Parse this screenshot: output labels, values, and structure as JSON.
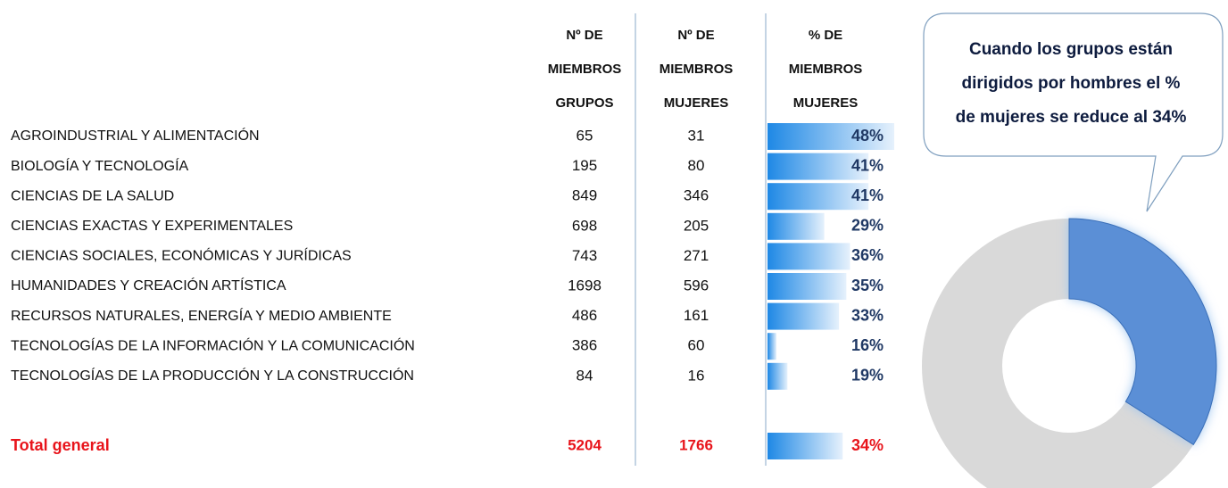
{
  "table": {
    "headers": [
      [
        "Nº DE",
        "MIEMBROS",
        "GRUPOS"
      ],
      [
        "Nº DE",
        "MIEMBROS",
        "MUJERES"
      ],
      [
        "% DE",
        "MIEMBROS",
        "MUJERES"
      ]
    ],
    "rows": [
      {
        "name": "AGROINDUSTRIAL Y ALIMENTACIÓN",
        "members": 65,
        "women": 31,
        "pct": 48,
        "pct_label": "48%"
      },
      {
        "name": "BIOLOGÍA Y TECNOLOGÍA",
        "members": 195,
        "women": 80,
        "pct": 41,
        "pct_label": "41%"
      },
      {
        "name": "CIENCIAS DE LA SALUD",
        "members": 849,
        "women": 346,
        "pct": 41,
        "pct_label": "41%"
      },
      {
        "name": "CIENCIAS EXACTAS Y EXPERIMENTALES",
        "members": 698,
        "women": 205,
        "pct": 29,
        "pct_label": "29%"
      },
      {
        "name": "CIENCIAS SOCIALES, ECONÓMICAS Y JURÍDICAS",
        "members": 743,
        "women": 271,
        "pct": 36,
        "pct_label": "36%"
      },
      {
        "name": "HUMANIDADES Y CREACIÓN ARTÍSTICA",
        "members": 1698,
        "women": 596,
        "pct": 35,
        "pct_label": "35%"
      },
      {
        "name": "RECURSOS NATURALES, ENERGÍA Y MEDIO AMBIENTE",
        "members": 486,
        "women": 161,
        "pct": 33,
        "pct_label": "33%"
      },
      {
        "name": "TECNOLOGÍAS DE LA INFORMACIÓN Y LA COMUNICACIÓN",
        "members": 386,
        "women": 60,
        "pct": 16,
        "pct_label": "16%"
      },
      {
        "name": "TECNOLOGÍAS DE LA PRODUCCIÓN Y LA CONSTRUCCIÓN",
        "members": 84,
        "women": 16,
        "pct": 19,
        "pct_label": "19%"
      }
    ],
    "total": {
      "name": "Total general",
      "members": 5204,
      "women": 1766,
      "pct": 34,
      "pct_label": "34%"
    }
  },
  "callout": {
    "lines": [
      "Cuando los grupos están",
      "dirigidos por hombres el %",
      "de mujeres se reduce al 34%"
    ]
  }
}
